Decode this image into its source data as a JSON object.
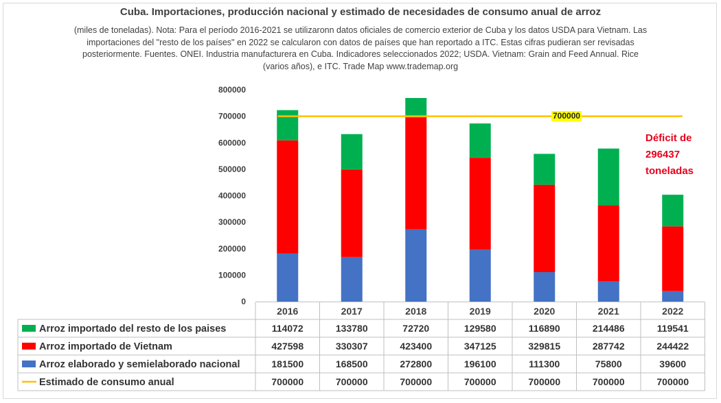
{
  "chart_data": {
    "type": "bar",
    "stacked": true,
    "title": "Cuba. Importaciones, producción nacional y estimado de necesidades de consumo anual de arroz",
    "subtitle": "(miles de toneladas). Nota: Para el período 2016-2021 se utilizaronn datos oficiales de comercio exterior de Cuba y los datos USDA para Vietnam. Las importaciones del \"resto de los países\" en 2022 se calcularon con datos de países que han reportado a ITC. Estas cifras pudieran ser revisadas posteriormente. Fuentes. ONEI. Industria manufacturera en Cuba. Indicadores seleccionados 2022; USDA. Vietnam: Grain and Feed Annual. Rice (varios años), e ITC. Trade Map www.trademap.org",
    "categories": [
      "2016",
      "2017",
      "2018",
      "2019",
      "2020",
      "2021",
      "2022"
    ],
    "ylim": [
      0,
      800000
    ],
    "yticks": [
      "0",
      "100000",
      "200000",
      "300000",
      "400000",
      "500000",
      "600000",
      "700000",
      "800000"
    ],
    "series": [
      {
        "name": "Arroz elaborado y semielaborado nacional",
        "color": "#4472c4",
        "kind": "bar",
        "values": [
          181500,
          168500,
          272800,
          196100,
          111300,
          75800,
          39600
        ]
      },
      {
        "name": "Arroz importado de Vietnam",
        "color": "#ff0000",
        "kind": "bar",
        "values": [
          427598,
          330307,
          423400,
          347125,
          329815,
          287742,
          244422
        ]
      },
      {
        "name": "Arroz importado del resto de los paises",
        "color": "#00b050",
        "kind": "bar",
        "values": [
          114072,
          133780,
          72720,
          129580,
          116890,
          214486,
          119541
        ]
      },
      {
        "name": "Estimado de consumo anual",
        "color": "#ffc000",
        "kind": "line",
        "values": [
          700000,
          700000,
          700000,
          700000,
          700000,
          700000,
          700000
        ]
      }
    ],
    "table_row_order": [
      2,
      1,
      0,
      3
    ],
    "annotations": {
      "line_label": "700000",
      "deficit": "Déficit de 296437 toneladas"
    }
  }
}
